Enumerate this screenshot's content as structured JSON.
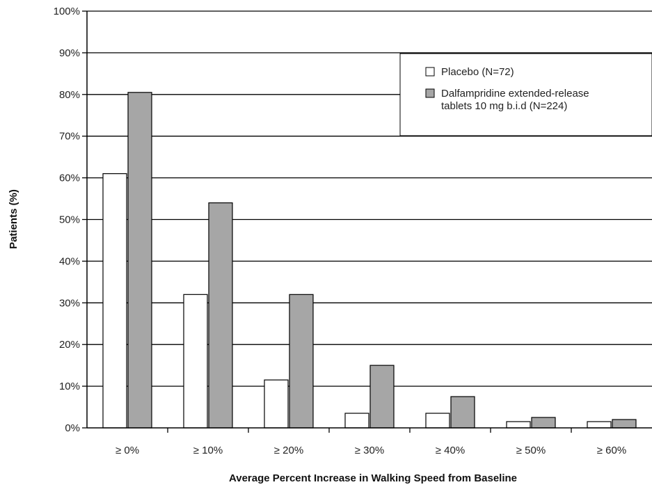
{
  "chart_data": {
    "type": "bar",
    "title": "",
    "xlabel": "Average Percent Increase in Walking Speed from Baseline",
    "ylabel": "Patients (%)",
    "ylim": [
      0,
      100
    ],
    "yticks": [
      "0%",
      "10%",
      "20%",
      "30%",
      "40%",
      "50%",
      "60%",
      "70%",
      "80%",
      "90%",
      "100%"
    ],
    "categories": [
      "≥ 0%",
      "≥ 10%",
      "≥ 20%",
      "≥ 30%",
      "≥ 40%",
      "≥ 50%",
      "≥ 60%"
    ],
    "grid": true,
    "legend_position": "top-right",
    "series": [
      {
        "name": "Placebo (N=72)",
        "color": "#ffffff",
        "values": [
          61,
          32,
          11.5,
          3.5,
          3.5,
          1.5,
          1.5
        ]
      },
      {
        "name": "Dalfampridine extended-release tablets 10 mg b.i.d (N=224)",
        "legend_lines": [
          "Dalfampridine extended-release",
          "tablets 10 mg b.i.d (N=224)"
        ],
        "color": "#a6a6a6",
        "values": [
          80.5,
          54,
          32,
          15,
          7.5,
          2.5,
          2
        ]
      }
    ]
  }
}
